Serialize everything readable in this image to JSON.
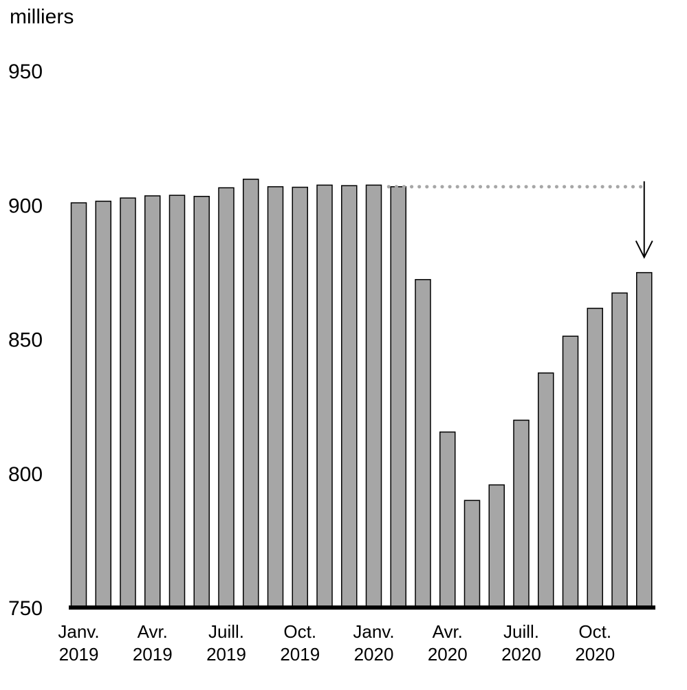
{
  "chart_data": {
    "type": "bar",
    "unit_label": "milliers",
    "categories": [
      "2019-01",
      "2019-02",
      "2019-03",
      "2019-04",
      "2019-05",
      "2019-06",
      "2019-07",
      "2019-08",
      "2019-09",
      "2019-10",
      "2019-11",
      "2019-12",
      "2020-01",
      "2020-02",
      "2020-03",
      "2020-04",
      "2020-05",
      "2020-06",
      "2020-07",
      "2020-08",
      "2020-09",
      "2020-10",
      "2020-11",
      "2020-12"
    ],
    "values": [
      900.8,
      901.4,
      902.6,
      903.4,
      903.6,
      903.2,
      906.4,
      909.6,
      906.8,
      906.6,
      907.4,
      907.2,
      907.4,
      906.8,
      872.2,
      815.4,
      789.9,
      795.7,
      819.8,
      837.4,
      851.1,
      861.5,
      867.2,
      874.8
    ],
    "ylim": [
      750,
      950
    ],
    "y_ticks": [
      "950",
      "900",
      "850",
      "800",
      "750"
    ],
    "x_tick_labels": [
      {
        "line1": "Janv.",
        "line2": "2019",
        "category": "2019-01"
      },
      {
        "line1": "Avr.",
        "line2": "2019",
        "category": "2019-04"
      },
      {
        "line1": "Juill.",
        "line2": "2019",
        "category": "2019-07"
      },
      {
        "line1": "Oct.",
        "line2": "2019",
        "category": "2019-10"
      },
      {
        "line1": "Janv.",
        "line2": "2020",
        "category": "2020-01"
      },
      {
        "line1": "Avr.",
        "line2": "2020",
        "category": "2020-04"
      },
      {
        "line1": "Juill.",
        "line2": "2020",
        "category": "2020-07"
      },
      {
        "line1": "Oct.",
        "line2": "2020",
        "category": "2020-10"
      }
    ],
    "reference_line": {
      "value": 906.8,
      "from_category": "2020-02",
      "to_category": "2020-12",
      "style": "dotted"
    },
    "arrow": {
      "category": "2020-12",
      "from_value": 906.8,
      "to_value": 880.5,
      "direction": "down"
    },
    "bar_color": "#a6a6a6",
    "reference_line_color": "#a6a6a6",
    "grid": false,
    "legend": "none"
  }
}
